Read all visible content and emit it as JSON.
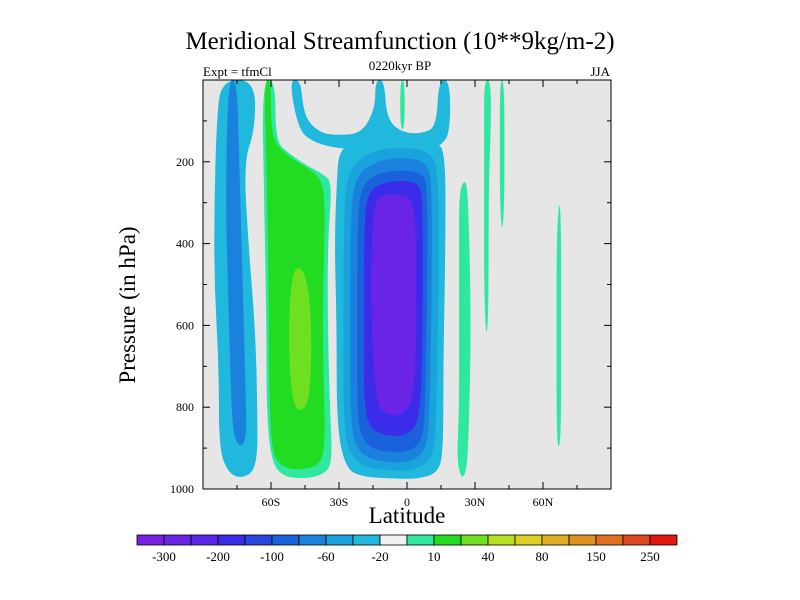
{
  "title": "Meridional Streamfunction (10**9kg/m-2)",
  "subtitle_left": "Expt = tfmCl",
  "subtitle_center": "0220kyr BP",
  "subtitle_right": "JJA",
  "chart_data": {
    "type": "heatmap",
    "title": "Meridional Streamfunction (10**9kg/m-2)",
    "xlabel": "Latitude",
    "ylabel": "Pressure (in hPa)",
    "x_range": [
      -90,
      90
    ],
    "y_range": [
      0,
      1000
    ],
    "y_reversed": true,
    "x_ticks": [
      {
        "value": -60,
        "label": "60S"
      },
      {
        "value": -30,
        "label": "30S"
      },
      {
        "value": 0,
        "label": "0"
      },
      {
        "value": 30,
        "label": "30N"
      },
      {
        "value": 60,
        "label": "60N"
      }
    ],
    "y_ticks": [
      {
        "value": 200,
        "label": "200"
      },
      {
        "value": 400,
        "label": "400"
      },
      {
        "value": 600,
        "label": "600"
      },
      {
        "value": 800,
        "label": "800"
      },
      {
        "value": 1000,
        "label": "1000"
      }
    ],
    "background_color": "#e6e6e6",
    "colorbar": {
      "colors": [
        "#7a1fe0",
        "#6a24e6",
        "#5a28e8",
        "#3a2ce8",
        "#2a46e0",
        "#1a62dc",
        "#1a82dc",
        "#1aa2dc",
        "#20b8dc",
        "#f0f0f0",
        "#2ee8a0",
        "#22dc22",
        "#6ee020",
        "#b8e020",
        "#dcd020",
        "#e0b020",
        "#e09020",
        "#e07020",
        "#e04820",
        "#e01810"
      ],
      "labels": [
        {
          "after_box": 1,
          "label": "-300"
        },
        {
          "after_box": 3,
          "label": "-200"
        },
        {
          "after_box": 5,
          "label": "-100"
        },
        {
          "after_box": 7,
          "label": "-60"
        },
        {
          "after_box": 9,
          "label": "-20"
        },
        {
          "after_box": 11,
          "label": "10"
        },
        {
          "after_box": 13,
          "label": "40"
        },
        {
          "after_box": 15,
          "label": "80"
        },
        {
          "after_box": 17,
          "label": "150"
        },
        {
          "after_box": 19,
          "label": "250"
        }
      ]
    },
    "regions": [
      {
        "name": "sh-outer-cell",
        "value": -20,
        "color": "#20b8dc",
        "outline": [
          [
            -82,
            0
          ],
          [
            -67,
            0
          ],
          [
            -67,
            120
          ],
          [
            -72,
            200
          ],
          [
            -70,
            400
          ],
          [
            -67,
            600
          ],
          [
            -66,
            800
          ],
          [
            -66,
            950
          ],
          [
            -73,
            975
          ],
          [
            -79,
            960
          ],
          [
            -83,
            900
          ],
          [
            -83,
            700
          ],
          [
            -85,
            500
          ],
          [
            -85,
            300
          ],
          [
            -84,
            100
          ]
        ]
      },
      {
        "name": "sh-outer-cell-core",
        "value": -60,
        "color": "#1a82dc",
        "outline": [
          [
            -79,
            0
          ],
          [
            -75,
            0
          ],
          [
            -74,
            200
          ],
          [
            -73,
            400
          ],
          [
            -72,
            600
          ],
          [
            -71,
            800
          ],
          [
            -71,
            880
          ],
          [
            -74,
            900
          ],
          [
            -77,
            860
          ],
          [
            -78,
            700
          ],
          [
            -79,
            500
          ],
          [
            -80,
            300
          ]
        ]
      },
      {
        "name": "sh-ferrel-cell-outer",
        "value": 10,
        "color": "#2ee8a0",
        "outline": [
          [
            -64,
            0
          ],
          [
            -58,
            0
          ],
          [
            -58,
            150
          ],
          [
            -52,
            180
          ],
          [
            -44,
            210
          ],
          [
            -37,
            230
          ],
          [
            -33,
            250
          ],
          [
            -35,
            400
          ],
          [
            -35,
            600
          ],
          [
            -34,
            800
          ],
          [
            -33,
            920
          ],
          [
            -35,
            960
          ],
          [
            -44,
            975
          ],
          [
            -55,
            970
          ],
          [
            -60,
            930
          ],
          [
            -62,
            800
          ],
          [
            -62,
            600
          ],
          [
            -63,
            300
          ]
        ]
      },
      {
        "name": "sh-ferrel-cell",
        "value": 40,
        "color": "#22dc22",
        "outline": [
          [
            -63,
            0
          ],
          [
            -60,
            0
          ],
          [
            -60,
            130
          ],
          [
            -56,
            170
          ],
          [
            -50,
            195
          ],
          [
            -44,
            215
          ],
          [
            -38,
            240
          ],
          [
            -36,
            300
          ],
          [
            -37,
            500
          ],
          [
            -37,
            700
          ],
          [
            -36,
            880
          ],
          [
            -38,
            940
          ],
          [
            -47,
            955
          ],
          [
            -56,
            945
          ],
          [
            -60,
            900
          ],
          [
            -61,
            700
          ],
          [
            -61,
            500
          ],
          [
            -62,
            200
          ]
        ]
      },
      {
        "name": "sh-ferrel-cell-core",
        "value": 80,
        "color": "#6ee020",
        "outline": [
          [
            -50,
            460
          ],
          [
            -46,
            460
          ],
          [
            -43,
            520
          ],
          [
            -42,
            650
          ],
          [
            -43,
            780
          ],
          [
            -46,
            810
          ],
          [
            -50,
            800
          ],
          [
            -52,
            700
          ],
          [
            -52,
            550
          ]
        ]
      },
      {
        "name": "polar-cap",
        "value": -20,
        "color": "#20b8dc",
        "outline": [
          [
            -52,
            0
          ],
          [
            -47,
            0
          ],
          [
            -46,
            60
          ],
          [
            -44,
            100
          ],
          [
            -38,
            130
          ],
          [
            -30,
            135
          ],
          [
            -20,
            130
          ],
          [
            -14,
            70
          ],
          [
            -14,
            0
          ],
          [
            -10,
            0
          ],
          [
            -9,
            95
          ],
          [
            -2,
            130
          ],
          [
            8,
            130
          ],
          [
            13,
            110
          ],
          [
            14,
            0
          ],
          [
            19,
            0
          ],
          [
            19,
            130
          ],
          [
            15,
            160
          ],
          [
            10,
            170
          ],
          [
            0,
            170
          ],
          [
            -10,
            175
          ],
          [
            -22,
            170
          ],
          [
            -33,
            165
          ],
          [
            -42,
            150
          ],
          [
            -48,
            120
          ]
        ]
      },
      {
        "name": "tropical-cell-outer",
        "value": -20,
        "color": "#20b8dc",
        "outline": [
          [
            -30,
            170
          ],
          [
            -22,
            150
          ],
          [
            -10,
            140
          ],
          [
            5,
            140
          ],
          [
            13,
            150
          ],
          [
            17,
            180
          ],
          [
            17,
            400
          ],
          [
            16,
            700
          ],
          [
            16,
            900
          ],
          [
            14,
            960
          ],
          [
            5,
            975
          ],
          [
            -5,
            975
          ],
          [
            -20,
            970
          ],
          [
            -27,
            950
          ],
          [
            -31,
            850
          ],
          [
            -31,
            600
          ],
          [
            -32,
            400
          ],
          [
            -31,
            250
          ]
        ]
      },
      {
        "name": "tropical-cell-l2",
        "value": -60,
        "color": "#1aa2dc",
        "outline": [
          [
            -27,
            220
          ],
          [
            -15,
            170
          ],
          [
            0,
            165
          ],
          [
            10,
            175
          ],
          [
            14,
            220
          ],
          [
            14,
            500
          ],
          [
            13,
            800
          ],
          [
            12,
            925
          ],
          [
            3,
            955
          ],
          [
            -10,
            955
          ],
          [
            -22,
            940
          ],
          [
            -28,
            880
          ],
          [
            -28,
            600
          ],
          [
            -28,
            400
          ]
        ]
      },
      {
        "name": "tropical-cell-l3",
        "value": -100,
        "color": "#1a82dc",
        "outline": [
          [
            -24,
            240
          ],
          [
            -13,
            195
          ],
          [
            0,
            190
          ],
          [
            8,
            200
          ],
          [
            11,
            240
          ],
          [
            11,
            500
          ],
          [
            10,
            800
          ],
          [
            9,
            900
          ],
          [
            2,
            935
          ],
          [
            -10,
            935
          ],
          [
            -20,
            920
          ],
          [
            -25,
            860
          ],
          [
            -25,
            600
          ],
          [
            -25,
            400
          ]
        ]
      },
      {
        "name": "tropical-cell-l4",
        "value": -150,
        "color": "#1a62dc",
        "outline": [
          [
            -21,
            260
          ],
          [
            -12,
            225
          ],
          [
            0,
            220
          ],
          [
            7,
            230
          ],
          [
            9,
            260
          ],
          [
            9,
            500
          ],
          [
            8,
            800
          ],
          [
            7,
            880
          ],
          [
            1,
            910
          ],
          [
            -10,
            910
          ],
          [
            -18,
            895
          ],
          [
            -22,
            840
          ],
          [
            -22,
            600
          ],
          [
            -22,
            400
          ]
        ]
      },
      {
        "name": "tropical-cell-l5",
        "value": -200,
        "color": "#3a2ce8",
        "outline": [
          [
            -18,
            280
          ],
          [
            -11,
            250
          ],
          [
            0,
            245
          ],
          [
            5,
            255
          ],
          [
            7,
            285
          ],
          [
            7,
            600
          ],
          [
            6,
            830
          ],
          [
            0,
            870
          ],
          [
            -9,
            870
          ],
          [
            -16,
            855
          ],
          [
            -19,
            800
          ],
          [
            -19,
            600
          ],
          [
            -19,
            400
          ]
        ]
      },
      {
        "name": "tropical-cell-core",
        "value": -300,
        "color": "#6a24e6",
        "outline": [
          [
            -15,
            300
          ],
          [
            -10,
            280
          ],
          [
            -2,
            280
          ],
          [
            3,
            295
          ],
          [
            4,
            400
          ],
          [
            4,
            650
          ],
          [
            3,
            780
          ],
          [
            -2,
            820
          ],
          [
            -8,
            820
          ],
          [
            -13,
            800
          ],
          [
            -15,
            700
          ],
          [
            -16,
            500
          ]
        ]
      },
      {
        "name": "nh-streak-1",
        "value": 10,
        "color": "#2ee8a0",
        "outline": [
          [
            -3,
            0
          ],
          [
            -1,
            0
          ],
          [
            -1,
            120
          ],
          [
            -3,
            120
          ]
        ]
      },
      {
        "name": "nh-streak-2",
        "value": 10,
        "color": "#2ee8a0",
        "outline": [
          [
            23,
            270
          ],
          [
            26,
            240
          ],
          [
            27,
            300
          ],
          [
            28,
            500
          ],
          [
            28,
            700
          ],
          [
            27,
            900
          ],
          [
            26,
            960
          ],
          [
            24,
            975
          ],
          [
            22,
            930
          ],
          [
            23,
            800
          ],
          [
            23,
            600
          ],
          [
            23,
            400
          ]
        ]
      },
      {
        "name": "nh-streak-3",
        "value": 10,
        "color": "#2ee8a0",
        "outline": [
          [
            34,
            0
          ],
          [
            37,
            0
          ],
          [
            37,
            120
          ],
          [
            36,
            260
          ],
          [
            36,
            560
          ],
          [
            35,
            640
          ],
          [
            34,
            520
          ],
          [
            34,
            300
          ],
          [
            34,
            120
          ]
        ]
      },
      {
        "name": "nh-streak-4",
        "value": 10,
        "color": "#2ee8a0",
        "outline": [
          [
            41,
            0
          ],
          [
            43,
            0
          ],
          [
            43,
            300
          ],
          [
            42,
            380
          ],
          [
            41,
            300
          ],
          [
            41,
            150
          ]
        ]
      },
      {
        "name": "nh-streak-5",
        "value": 10,
        "color": "#2ee8a0",
        "outline": [
          [
            67,
            290
          ],
          [
            68,
            340
          ],
          [
            68,
            600
          ],
          [
            68,
            850
          ],
          [
            67,
            910
          ],
          [
            66,
            860
          ],
          [
            66,
            600
          ],
          [
            66,
            400
          ]
        ]
      }
    ]
  }
}
